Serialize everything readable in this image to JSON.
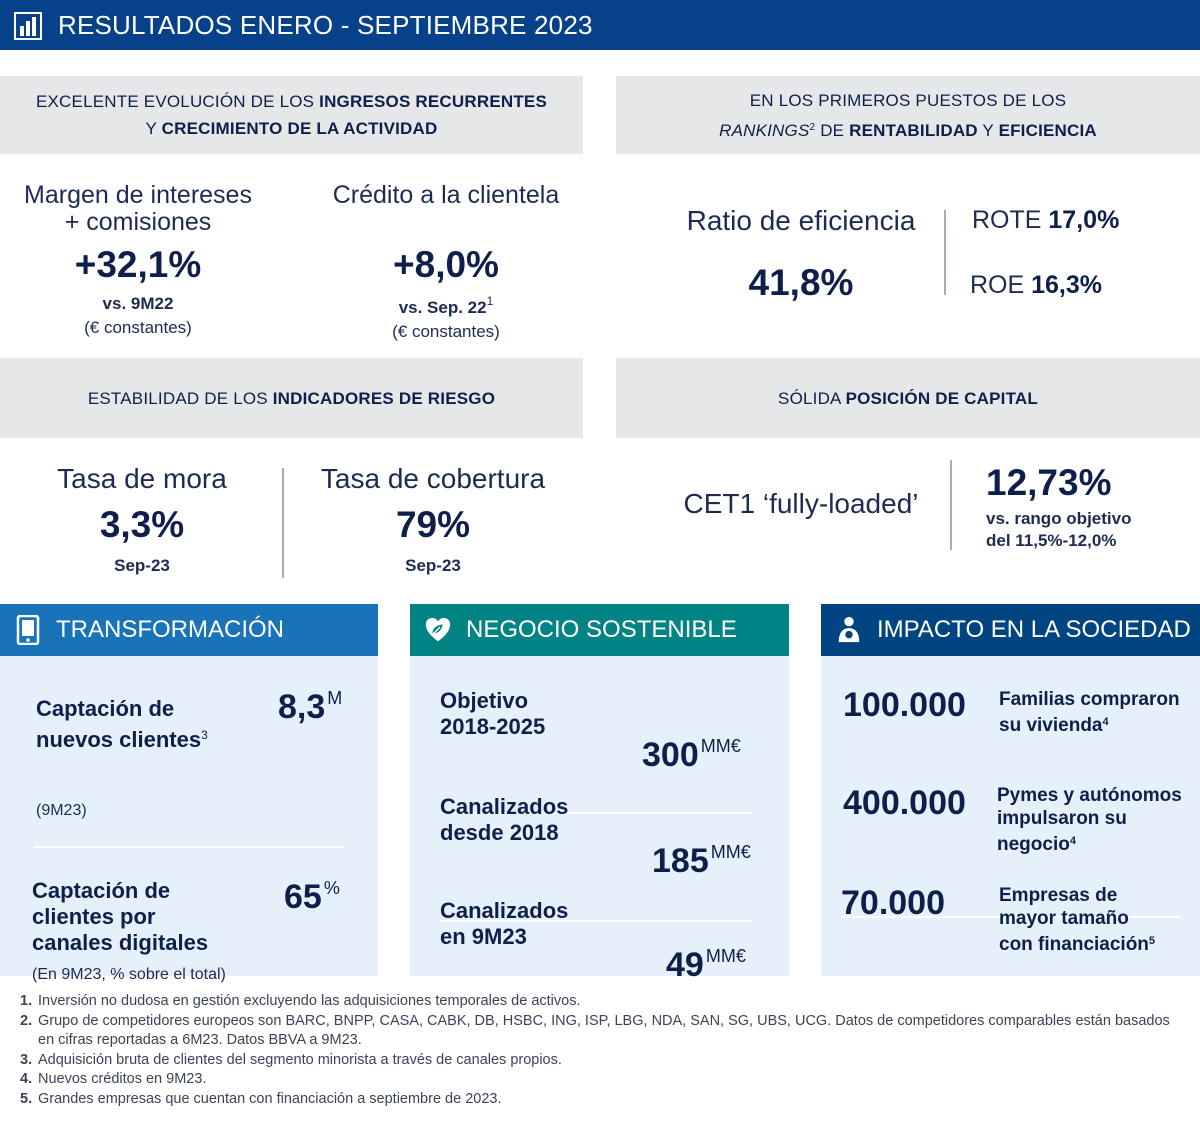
{
  "header": {
    "title": "RESULTADOS ENERO - SEPTIEMBRE 2023",
    "icon": "bar-chart-icon"
  },
  "banners": {
    "income": {
      "line1_a": "EXCELENTE EVOLUCIÓN DE LOS ",
      "line1_b": "INGRESOS RECURRENTES",
      "line2_a": "Y ",
      "line2_b": "CRECIMIENTO DE LA ACTIVIDAD"
    },
    "rankings": {
      "line1": "EN LOS PRIMEROS PUESTOS DE LOS",
      "line2_italic": "RANKINGS",
      "line2_sup": "2",
      "line2_a": " DE ",
      "line2_b": "RENTABILIDAD",
      "line2_c": " Y ",
      "line2_d": "EFICIENCIA"
    },
    "risk": {
      "a": "ESTABILIDAD DE LOS ",
      "b": "INDICADORES DE RIESGO"
    },
    "capital": {
      "a": "SÓLIDA ",
      "b": "POSICIÓN DE CAPITAL"
    }
  },
  "income": {
    "margin": {
      "label1": "Margen de intereses",
      "label2": "+ comisiones",
      "value": "+32,1%",
      "sub": "vs. 9M22",
      "note": "(€ constantes)"
    },
    "credit": {
      "label": "Crédito a la clientela",
      "value": "+8,0%",
      "sub": "vs. Sep. 22",
      "sub_sup": "1",
      "note": "(€ constantes)"
    }
  },
  "efficiency": {
    "label": "Ratio de eficiencia",
    "value": "41,8%",
    "rote_label": "ROTE ",
    "rote_value": "17,0%",
    "roe_label": "ROE ",
    "roe_value": "16,3%"
  },
  "risk": {
    "npl": {
      "label": "Tasa de mora",
      "value": "3,3%",
      "date": "Sep-23"
    },
    "coverage": {
      "label": "Tasa de cobertura",
      "value": "79%",
      "date": "Sep-23"
    }
  },
  "capital": {
    "label": "CET1 ‘fully-loaded’",
    "value": "12,73%",
    "note1": "vs. rango objetivo",
    "note2": "del 11,5%-12,0%"
  },
  "transformacion": {
    "title": "TRANSFORMACIÓN",
    "color": "#1973b8",
    "icon": "tablet-icon",
    "item1": {
      "label1": "Captación de",
      "label2": "nuevos clientes",
      "sup": "3",
      "period": "(9M23)",
      "value": "8,3",
      "unit": "M"
    },
    "item2": {
      "label1": "Captación de",
      "label2": "clientes por",
      "label3": "canales digitales",
      "note": "(En 9M23, % sobre el total)",
      "value": "65",
      "unit": "%"
    }
  },
  "sostenible": {
    "title": "NEGOCIO SOSTENIBLE",
    "color": "#028484",
    "icon": "leaf-heart-icon",
    "items": [
      {
        "label1": "Objetivo",
        "label2": "2018-2025",
        "value": "300",
        "unit": "MM€"
      },
      {
        "label1": "Canalizados",
        "label2": "desde 2018",
        "value": "185",
        "unit": "MM€"
      },
      {
        "label1": "Canalizados",
        "label2": "en 9M23",
        "value": "49",
        "unit": "MM€"
      }
    ]
  },
  "sociedad": {
    "title": "IMPACTO EN LA SOCIEDAD",
    "color": "#004481",
    "icon": "people-icon",
    "items": [
      {
        "value": "100.000",
        "text1": "Familias compraron",
        "text2": "su vivienda",
        "sup": "4"
      },
      {
        "value": "400.000",
        "text1": "Pymes y autónomos",
        "text2": "impulsaron su",
        "text3": "negocio",
        "sup": "4"
      },
      {
        "value": "70.000",
        "text1": "Empresas de",
        "text2": "mayor tamaño",
        "text3": "con financiación",
        "sup": "5"
      }
    ]
  },
  "footnotes": [
    {
      "n": "1.",
      "text": "Inversión no dudosa en gestión excluyendo las adquisiciones temporales de activos."
    },
    {
      "n": "2.",
      "text": "Grupo de competidores europeos son BARC, BNPP, CASA, CABK, DB, HSBC, ING, ISP, LBG, NDA, SAN, SG, UBS, UCG. Datos de competidores comparables están basados en cifras reportadas a 6M23. Datos BBVA a 9M23."
    },
    {
      "n": "3.",
      "text": "Adquisición bruta de clientes del segmento minorista a través de canales propios."
    },
    {
      "n": "4.",
      "text": "Nuevos créditos en 9M23."
    },
    {
      "n": "5.",
      "text": "Grandes empresas que cuentan con financiación a septiembre de 2023."
    }
  ]
}
